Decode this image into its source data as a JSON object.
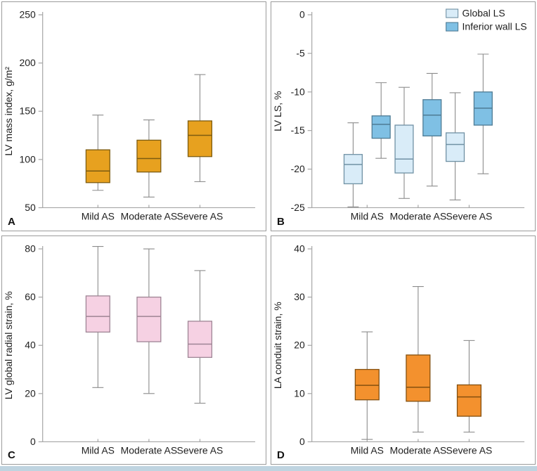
{
  "figure_title": "",
  "chart_data": [
    {
      "type": "boxplot",
      "panel_label": "A",
      "ylabel": "LV mass index, g/m²",
      "xlabel": "",
      "ylim": [
        50,
        250
      ],
      "yticks": [
        50,
        100,
        150,
        200,
        250
      ],
      "categories": [
        "Mild AS",
        "Moderate AS",
        "Severe AS"
      ],
      "grid": false,
      "legend": {
        "show": false
      },
      "series": [
        {
          "name": "",
          "fill": "#e7a11f",
          "stroke": "#7d5c11",
          "boxes": [
            {
              "whisker_low": 68,
              "q1": 76,
              "median": 88,
              "q3": 110,
              "whisker_high": 146
            },
            {
              "whisker_low": 61,
              "q1": 87,
              "median": 101,
              "q3": 120,
              "whisker_high": 141
            },
            {
              "whisker_low": 77,
              "q1": 103,
              "median": 125,
              "q3": 140,
              "whisker_high": 188
            }
          ]
        }
      ]
    },
    {
      "type": "boxplot",
      "panel_label": "B",
      "ylabel": "LV LS, %",
      "xlabel": "",
      "ylim": [
        -25,
        0
      ],
      "yticks": [
        0,
        -5,
        -10,
        -15,
        -20,
        -25
      ],
      "categories": [
        "Mild AS",
        "Moderate AS",
        "Severe AS"
      ],
      "grid": false,
      "legend": {
        "show": true,
        "position": "top-right",
        "entries": [
          "Global LS",
          "Inferior wall LS"
        ]
      },
      "series": [
        {
          "name": "Global LS",
          "fill": "#d9ecf8",
          "stroke": "#7091a4",
          "boxes": [
            {
              "whisker_low": -24.9,
              "q1": -21.9,
              "median": -19.4,
              "q3": -18.1,
              "whisker_high": -14.0
            },
            {
              "whisker_low": -23.8,
              "q1": -20.5,
              "median": -18.7,
              "q3": -14.3,
              "whisker_high": -9.4
            },
            {
              "whisker_low": -24.0,
              "q1": -19.0,
              "median": -16.8,
              "q3": -15.3,
              "whisker_high": -10.1
            }
          ]
        },
        {
          "name": "Inferior wall LS",
          "fill": "#7fc0e4",
          "stroke": "#4e7b94",
          "boxes": [
            {
              "whisker_low": -18.6,
              "q1": -16.0,
              "median": -14.2,
              "q3": -13.1,
              "whisker_high": -8.8
            },
            {
              "whisker_low": -22.2,
              "q1": -15.7,
              "median": -13.0,
              "q3": -11.0,
              "whisker_high": -7.6
            },
            {
              "whisker_low": -20.6,
              "q1": -14.3,
              "median": -12.1,
              "q3": -10.0,
              "whisker_high": -5.1
            }
          ]
        }
      ]
    },
    {
      "type": "boxplot",
      "panel_label": "C",
      "ylabel": "LV global radial strain, %",
      "xlabel": "",
      "ylim": [
        0,
        80
      ],
      "yticks": [
        0,
        20,
        40,
        60,
        80
      ],
      "categories": [
        "Mild AS",
        "Moderate AS",
        "Severe AS"
      ],
      "grid": false,
      "legend": {
        "show": false
      },
      "series": [
        {
          "name": "",
          "fill": "#f6d1e3",
          "stroke": "#9e8595",
          "boxes": [
            {
              "whisker_low": 22.5,
              "q1": 45.5,
              "median": 52,
              "q3": 60.5,
              "whisker_high": 81
            },
            {
              "whisker_low": 20,
              "q1": 41.5,
              "median": 52,
              "q3": 60,
              "whisker_high": 80
            },
            {
              "whisker_low": 16,
              "q1": 35,
              "median": 40.5,
              "q3": 50,
              "whisker_high": 71
            }
          ]
        }
      ]
    },
    {
      "type": "boxplot",
      "panel_label": "D",
      "ylabel": "LA conduit strain, %",
      "xlabel": "",
      "ylim": [
        0,
        40
      ],
      "yticks": [
        0,
        10,
        20,
        30,
        40
      ],
      "categories": [
        "Mild AS",
        "Moderate AS",
        "Severe AS"
      ],
      "grid": false,
      "legend": {
        "show": false
      },
      "series": [
        {
          "name": "",
          "fill": "#f3912e",
          "stroke": "#84500f",
          "boxes": [
            {
              "whisker_low": 0.5,
              "q1": 8.7,
              "median": 11.7,
              "q3": 15.0,
              "whisker_high": 22.8
            },
            {
              "whisker_low": 2.0,
              "q1": 8.4,
              "median": 11.3,
              "q3": 18.0,
              "whisker_high": 32.2
            },
            {
              "whisker_low": 2.0,
              "q1": 5.3,
              "median": 9.3,
              "q3": 11.8,
              "whisker_high": 21.0
            }
          ]
        }
      ]
    }
  ],
  "colors": {
    "panel_border": "#9b9b9b",
    "axis": "#a6a6a6",
    "whisker": "#8c8c8c",
    "text": "#1e1e1e",
    "bottom_band": "#bfd4e0",
    "box_a": "#e7a11f",
    "box_b_global": "#d9ecf8",
    "box_b_inferior": "#7fc0e4",
    "box_c": "#f6d1e3",
    "box_d": "#f3912e"
  }
}
